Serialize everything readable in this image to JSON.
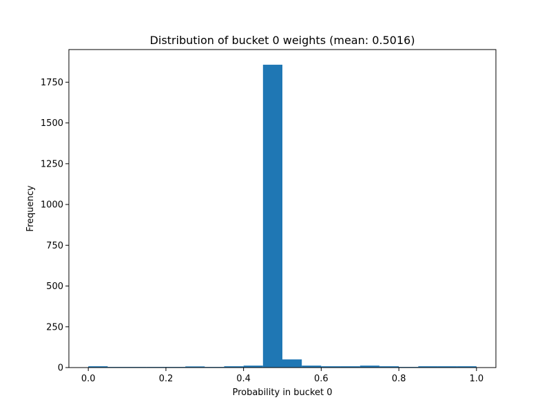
{
  "chart_data": {
    "type": "bar",
    "title": "Distribution of bucket 0 weights (mean: 0.5016)",
    "xlabel": "Probability in bucket 0",
    "ylabel": "Frequency",
    "xlim": [
      -0.05,
      1.05
    ],
    "ylim": [
      0,
      1950
    ],
    "x_ticks": [
      {
        "value": 0.0,
        "label": "0.0"
      },
      {
        "value": 0.2,
        "label": "0.2"
      },
      {
        "value": 0.4,
        "label": "0.4"
      },
      {
        "value": 0.6,
        "label": "0.6"
      },
      {
        "value": 0.8,
        "label": "0.8"
      },
      {
        "value": 1.0,
        "label": "1.0"
      }
    ],
    "y_ticks": [
      {
        "value": 0,
        "label": "0"
      },
      {
        "value": 250,
        "label": "250"
      },
      {
        "value": 500,
        "label": "500"
      },
      {
        "value": 750,
        "label": "750"
      },
      {
        "value": 1000,
        "label": "1000"
      },
      {
        "value": 1250,
        "label": "1250"
      },
      {
        "value": 1500,
        "label": "1500"
      },
      {
        "value": 1750,
        "label": "1750"
      }
    ],
    "bins": [
      {
        "start": 0.0,
        "end": 0.05,
        "count": 8
      },
      {
        "start": 0.05,
        "end": 0.1,
        "count": 4
      },
      {
        "start": 0.1,
        "end": 0.15,
        "count": 4
      },
      {
        "start": 0.15,
        "end": 0.2,
        "count": 4
      },
      {
        "start": 0.2,
        "end": 0.25,
        "count": 4
      },
      {
        "start": 0.25,
        "end": 0.3,
        "count": 7
      },
      {
        "start": 0.3,
        "end": 0.35,
        "count": 4
      },
      {
        "start": 0.35,
        "end": 0.4,
        "count": 8
      },
      {
        "start": 0.4,
        "end": 0.45,
        "count": 12
      },
      {
        "start": 0.45,
        "end": 0.5,
        "count": 1857
      },
      {
        "start": 0.5,
        "end": 0.55,
        "count": 50
      },
      {
        "start": 0.55,
        "end": 0.6,
        "count": 12
      },
      {
        "start": 0.6,
        "end": 0.65,
        "count": 8
      },
      {
        "start": 0.65,
        "end": 0.7,
        "count": 8
      },
      {
        "start": 0.7,
        "end": 0.75,
        "count": 12
      },
      {
        "start": 0.75,
        "end": 0.8,
        "count": 8
      },
      {
        "start": 0.8,
        "end": 0.85,
        "count": 4
      },
      {
        "start": 0.85,
        "end": 0.9,
        "count": 8
      },
      {
        "start": 0.9,
        "end": 0.95,
        "count": 8
      },
      {
        "start": 0.95,
        "end": 1.0,
        "count": 8
      }
    ],
    "colors": {
      "bar": "#1f77b4"
    },
    "grid": false,
    "legend": "none"
  }
}
